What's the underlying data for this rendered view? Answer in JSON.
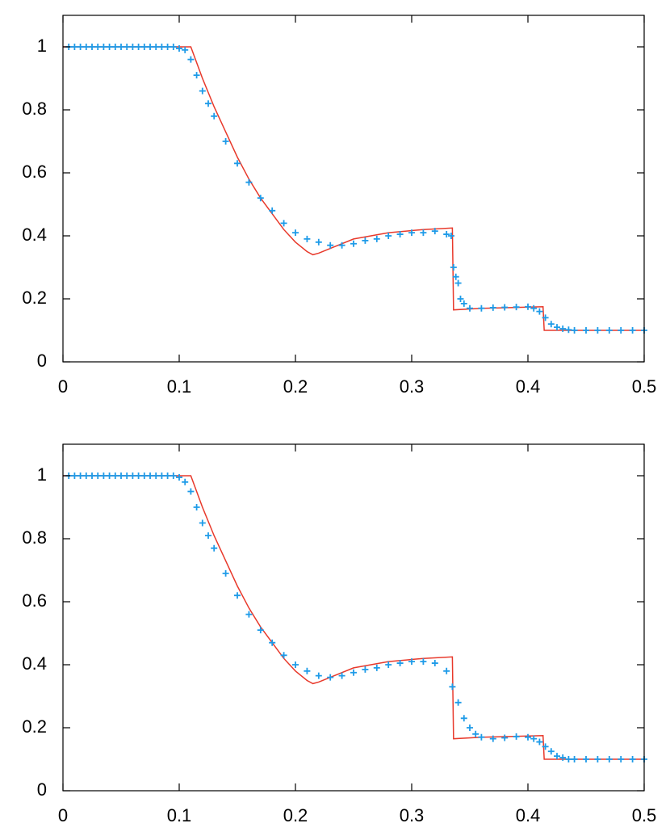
{
  "chart_data": [
    {
      "type": "line",
      "xlim": [
        0,
        0.5
      ],
      "ylim": [
        0,
        1.1
      ],
      "xticks": [
        0,
        0.1,
        0.2,
        0.3,
        0.4,
        0.5
      ],
      "yticks": [
        0,
        0.2,
        0.4,
        0.6,
        0.8,
        1
      ],
      "series": [
        {
          "type": "line",
          "color": "#e8392b",
          "x": [
            0,
            0.11,
            0.12,
            0.13,
            0.14,
            0.15,
            0.16,
            0.17,
            0.18,
            0.19,
            0.2,
            0.21,
            0.215,
            0.22,
            0.23,
            0.25,
            0.28,
            0.31,
            0.335,
            0.336,
            0.36,
            0.413,
            0.414,
            0.5
          ],
          "values": [
            1,
            1,
            0.9,
            0.81,
            0.73,
            0.65,
            0.58,
            0.52,
            0.47,
            0.42,
            0.38,
            0.35,
            0.34,
            0.345,
            0.36,
            0.39,
            0.41,
            0.42,
            0.425,
            0.165,
            0.17,
            0.175,
            0.1,
            0.1
          ]
        },
        {
          "type": "scatter",
          "marker": "+",
          "color": "#1e9be8",
          "x": [
            0.005,
            0.01,
            0.015,
            0.02,
            0.025,
            0.03,
            0.035,
            0.04,
            0.045,
            0.05,
            0.055,
            0.06,
            0.065,
            0.07,
            0.075,
            0.08,
            0.085,
            0.09,
            0.095,
            0.1,
            0.105,
            0.11,
            0.115,
            0.12,
            0.125,
            0.13,
            0.14,
            0.15,
            0.16,
            0.17,
            0.18,
            0.19,
            0.2,
            0.21,
            0.22,
            0.23,
            0.24,
            0.25,
            0.26,
            0.27,
            0.28,
            0.29,
            0.3,
            0.31,
            0.32,
            0.33,
            0.334,
            0.336,
            0.338,
            0.34,
            0.342,
            0.345,
            0.35,
            0.36,
            0.37,
            0.38,
            0.39,
            0.4,
            0.405,
            0.41,
            0.415,
            0.42,
            0.425,
            0.43,
            0.435,
            0.44,
            0.45,
            0.46,
            0.47,
            0.48,
            0.49,
            0.5
          ],
          "values": [
            1,
            1,
            1,
            1,
            1,
            1,
            1,
            1,
            1,
            1,
            1,
            1,
            1,
            1,
            1,
            1,
            1,
            1,
            1,
            0.995,
            0.99,
            0.96,
            0.91,
            0.86,
            0.82,
            0.78,
            0.7,
            0.63,
            0.57,
            0.52,
            0.48,
            0.44,
            0.41,
            0.39,
            0.38,
            0.37,
            0.37,
            0.375,
            0.385,
            0.39,
            0.4,
            0.405,
            0.41,
            0.41,
            0.415,
            0.405,
            0.4,
            0.3,
            0.27,
            0.25,
            0.2,
            0.185,
            0.17,
            0.17,
            0.172,
            0.173,
            0.174,
            0.175,
            0.17,
            0.16,
            0.14,
            0.12,
            0.11,
            0.105,
            0.102,
            0.1,
            0.1,
            0.1,
            0.1,
            0.1,
            0.1,
            0.1
          ]
        }
      ]
    },
    {
      "type": "line",
      "xlim": [
        0,
        0.5
      ],
      "ylim": [
        0,
        1.1
      ],
      "xticks": [
        0,
        0.1,
        0.2,
        0.3,
        0.4,
        0.5
      ],
      "yticks": [
        0,
        0.2,
        0.4,
        0.6,
        0.8,
        1
      ],
      "series": [
        {
          "type": "line",
          "color": "#e8392b",
          "x": [
            0,
            0.11,
            0.12,
            0.13,
            0.14,
            0.15,
            0.16,
            0.17,
            0.18,
            0.19,
            0.2,
            0.21,
            0.215,
            0.22,
            0.23,
            0.25,
            0.28,
            0.31,
            0.335,
            0.336,
            0.36,
            0.413,
            0.414,
            0.5
          ],
          "values": [
            1,
            1,
            0.9,
            0.81,
            0.73,
            0.65,
            0.58,
            0.52,
            0.47,
            0.42,
            0.38,
            0.35,
            0.34,
            0.345,
            0.36,
            0.39,
            0.41,
            0.42,
            0.425,
            0.165,
            0.17,
            0.175,
            0.1,
            0.1
          ]
        },
        {
          "type": "scatter",
          "marker": "+",
          "color": "#1e9be8",
          "x": [
            0.005,
            0.01,
            0.015,
            0.02,
            0.025,
            0.03,
            0.035,
            0.04,
            0.045,
            0.05,
            0.055,
            0.06,
            0.065,
            0.07,
            0.075,
            0.08,
            0.085,
            0.09,
            0.095,
            0.1,
            0.105,
            0.11,
            0.115,
            0.12,
            0.125,
            0.13,
            0.14,
            0.15,
            0.16,
            0.17,
            0.18,
            0.19,
            0.2,
            0.21,
            0.22,
            0.23,
            0.24,
            0.25,
            0.26,
            0.27,
            0.28,
            0.29,
            0.3,
            0.31,
            0.32,
            0.33,
            0.335,
            0.34,
            0.345,
            0.35,
            0.355,
            0.36,
            0.37,
            0.38,
            0.39,
            0.4,
            0.405,
            0.41,
            0.415,
            0.42,
            0.425,
            0.43,
            0.435,
            0.44,
            0.45,
            0.46,
            0.47,
            0.48,
            0.49,
            0.5
          ],
          "values": [
            1,
            1,
            1,
            1,
            1,
            1,
            1,
            1,
            1,
            1,
            1,
            1,
            1,
            1,
            1,
            1,
            1,
            1,
            1,
            0.995,
            0.98,
            0.95,
            0.9,
            0.85,
            0.81,
            0.77,
            0.69,
            0.62,
            0.56,
            0.51,
            0.47,
            0.43,
            0.4,
            0.38,
            0.365,
            0.36,
            0.365,
            0.375,
            0.385,
            0.39,
            0.4,
            0.405,
            0.41,
            0.41,
            0.405,
            0.38,
            0.33,
            0.28,
            0.23,
            0.2,
            0.18,
            0.17,
            0.165,
            0.168,
            0.172,
            0.17,
            0.165,
            0.155,
            0.14,
            0.125,
            0.11,
            0.105,
            0.1,
            0.1,
            0.1,
            0.1,
            0.1,
            0.1,
            0.1,
            0.1
          ]
        }
      ]
    }
  ]
}
